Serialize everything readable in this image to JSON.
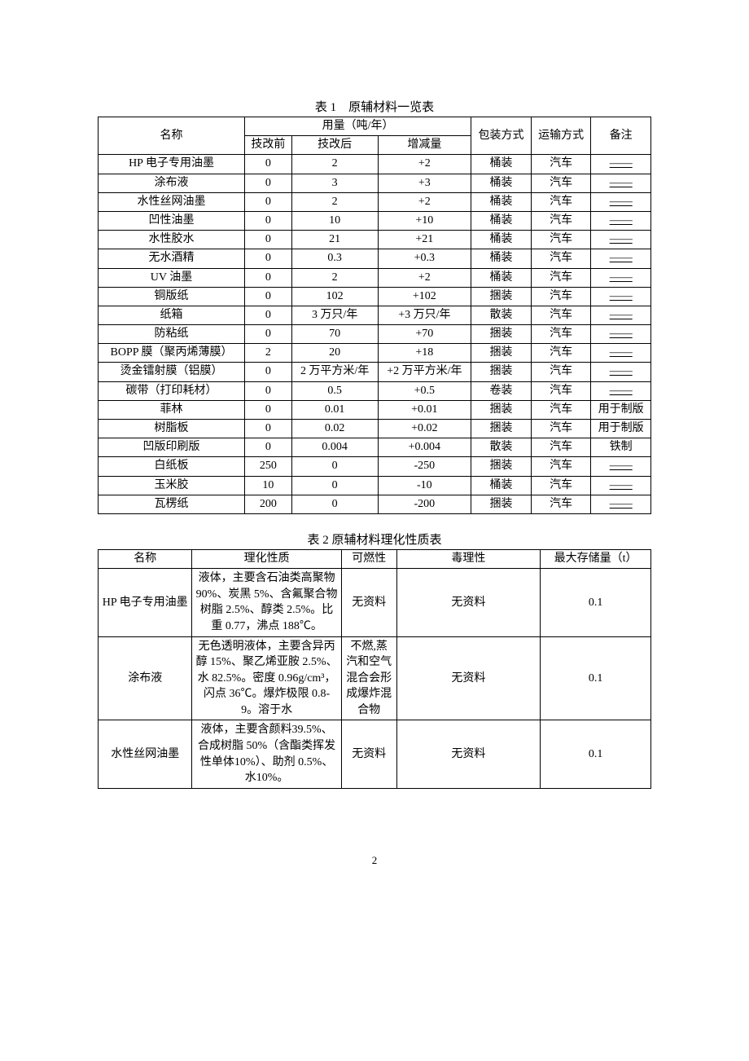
{
  "table1": {
    "title": "表 1　原辅材料一览表",
    "headers": {
      "name": "名称",
      "usage": "用量（吨/年）",
      "before": "技改前",
      "after": "技改后",
      "delta": "增减量",
      "package": "包装方式",
      "transport": "运输方式",
      "remark": "备注"
    },
    "rows": [
      {
        "name": "HP 电子专用油墨",
        "before": "0",
        "after": "2",
        "delta": "+2",
        "package": "桶装",
        "transport": "汽车",
        "remark": "——"
      },
      {
        "name": "涂布液",
        "before": "0",
        "after": "3",
        "delta": "+3",
        "package": "桶装",
        "transport": "汽车",
        "remark": "——"
      },
      {
        "name": "水性丝网油墨",
        "before": "0",
        "after": "2",
        "delta": "+2",
        "package": "桶装",
        "transport": "汽车",
        "remark": "——"
      },
      {
        "name": "凹性油墨",
        "before": "0",
        "after": "10",
        "delta": "+10",
        "package": "桶装",
        "transport": "汽车",
        "remark": "——"
      },
      {
        "name": "水性胶水",
        "before": "0",
        "after": "21",
        "delta": "+21",
        "package": "桶装",
        "transport": "汽车",
        "remark": "——"
      },
      {
        "name": "无水酒精",
        "before": "0",
        "after": "0.3",
        "delta": "+0.3",
        "package": "桶装",
        "transport": "汽车",
        "remark": "——"
      },
      {
        "name": "UV 油墨",
        "before": "0",
        "after": "2",
        "delta": "+2",
        "package": "桶装",
        "transport": "汽车",
        "remark": "——"
      },
      {
        "name": "铜版纸",
        "before": "0",
        "after": "102",
        "delta": "+102",
        "package": "捆装",
        "transport": "汽车",
        "remark": "——"
      },
      {
        "name": "纸箱",
        "before": "0",
        "after": "3 万只/年",
        "delta": "+3 万只/年",
        "package": "散装",
        "transport": "汽车",
        "remark": "——"
      },
      {
        "name": "防粘纸",
        "before": "0",
        "after": "70",
        "delta": "+70",
        "package": "捆装",
        "transport": "汽车",
        "remark": "——"
      },
      {
        "name": "BOPP 膜（聚丙烯薄膜）",
        "before": "2",
        "after": "20",
        "delta": "+18",
        "package": "捆装",
        "transport": "汽车",
        "remark": "——"
      },
      {
        "name": "烫金镭射膜（铝膜）",
        "before": "0",
        "after": "2 万平方米/年",
        "delta": "+2 万平方米/年",
        "package": "捆装",
        "transport": "汽车",
        "remark": "——"
      },
      {
        "name": "碳带（打印耗材）",
        "before": "0",
        "after": "0.5",
        "delta": "+0.5",
        "package": "卷装",
        "transport": "汽车",
        "remark": "——"
      },
      {
        "name": "菲林",
        "before": "0",
        "after": "0.01",
        "delta": "+0.01",
        "package": "捆装",
        "transport": "汽车",
        "remark": "用于制版"
      },
      {
        "name": "树脂板",
        "before": "0",
        "after": "0.02",
        "delta": "+0.02",
        "package": "捆装",
        "transport": "汽车",
        "remark": "用于制版"
      },
      {
        "name": "凹版印刷版",
        "before": "0",
        "after": "0.004",
        "delta": "+0.004",
        "package": "散装",
        "transport": "汽车",
        "remark": "铁制"
      },
      {
        "name": "白纸板",
        "before": "250",
        "after": "0",
        "delta": "-250",
        "package": "捆装",
        "transport": "汽车",
        "remark": "——"
      },
      {
        "name": "玉米胶",
        "before": "10",
        "after": "0",
        "delta": "-10",
        "package": "桶装",
        "transport": "汽车",
        "remark": "——"
      },
      {
        "name": "瓦楞纸",
        "before": "200",
        "after": "0",
        "delta": "-200",
        "package": "捆装",
        "transport": "汽车",
        "remark": "——"
      }
    ]
  },
  "table2": {
    "title": "表 2  原辅材料理化性质表",
    "headers": {
      "name": "名称",
      "property": "理化性质",
      "flammable": "可燃性",
      "toxic": "毒理性",
      "storage": "最大存储量（t）"
    },
    "rows": [
      {
        "name": "HP 电子专用油墨",
        "property": "液体，主要含石油类高聚物 90%、炭黑 5%、含氟聚合物树脂 2.5%、醇类 2.5%。比重 0.77，沸点 188℃。",
        "flammable": "无资料",
        "toxic": "无资料",
        "storage": "0.1"
      },
      {
        "name": "涂布液",
        "property": "无色透明液体，主要含异丙醇 15%、聚乙烯亚胺 2.5%、水 82.5%。密度 0.96g/cm³，闪点 36℃。爆炸极限 0.8-9。溶于水",
        "flammable": "不燃,蒸汽和空气混合会形成爆炸混合物",
        "toxic": "无资料",
        "storage": "0.1"
      },
      {
        "name": "水性丝网油墨",
        "property": "液体，主要含颜料39.5%、合成树脂 50%（含酯类挥发性单体10%）、助剂 0.5%、水10%。",
        "flammable": "无资料",
        "toxic": "无资料",
        "storage": "0.1"
      }
    ]
  },
  "pageNumber": "2"
}
